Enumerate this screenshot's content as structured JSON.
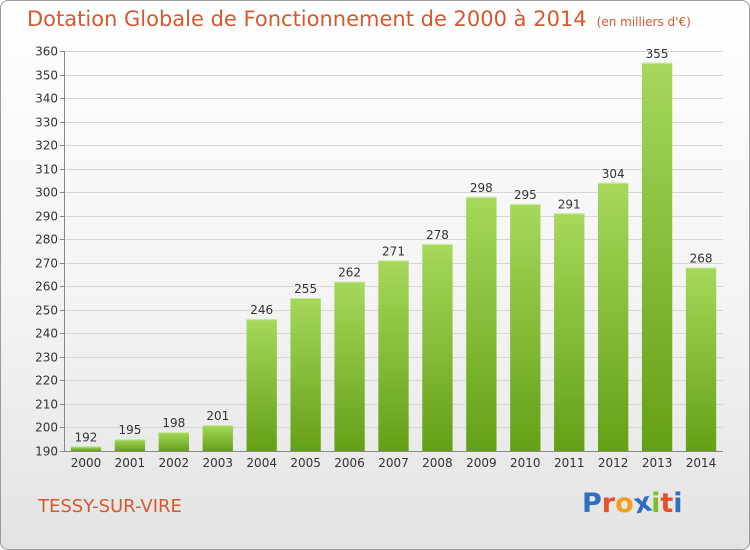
{
  "header": {
    "title": "Dotation Globale de Fonctionnement de 2000 à 2014",
    "unit": "(en milliers d'€)"
  },
  "footer": {
    "place": "TESSY-SUR-VIRE",
    "brand": "Proxiti",
    "brand_letters": [
      "P",
      "r",
      "o",
      "x",
      "i",
      "t",
      "i"
    ],
    "brand_colors": [
      "#2e6fc0",
      "#e7512a",
      "#f0a01e",
      "#2e6fc0",
      "#7bbd2a",
      "#e7512a",
      "#2e6fc0"
    ]
  },
  "chart_data": {
    "type": "bar",
    "categories": [
      "2000",
      "2001",
      "2002",
      "2003",
      "2004",
      "2005",
      "2006",
      "2007",
      "2008",
      "2009",
      "2010",
      "2011",
      "2012",
      "2013",
      "2014"
    ],
    "values": [
      192,
      195,
      198,
      201,
      246,
      255,
      262,
      271,
      278,
      298,
      295,
      291,
      304,
      355,
      268
    ],
    "ylim": [
      190,
      360
    ],
    "yticks": [
      190,
      200,
      210,
      220,
      230,
      240,
      250,
      260,
      270,
      280,
      290,
      300,
      310,
      320,
      330,
      340,
      350,
      360
    ],
    "grid": true,
    "bar_color_light": "#a6d85b",
    "bar_color_dark": "#64a016"
  }
}
